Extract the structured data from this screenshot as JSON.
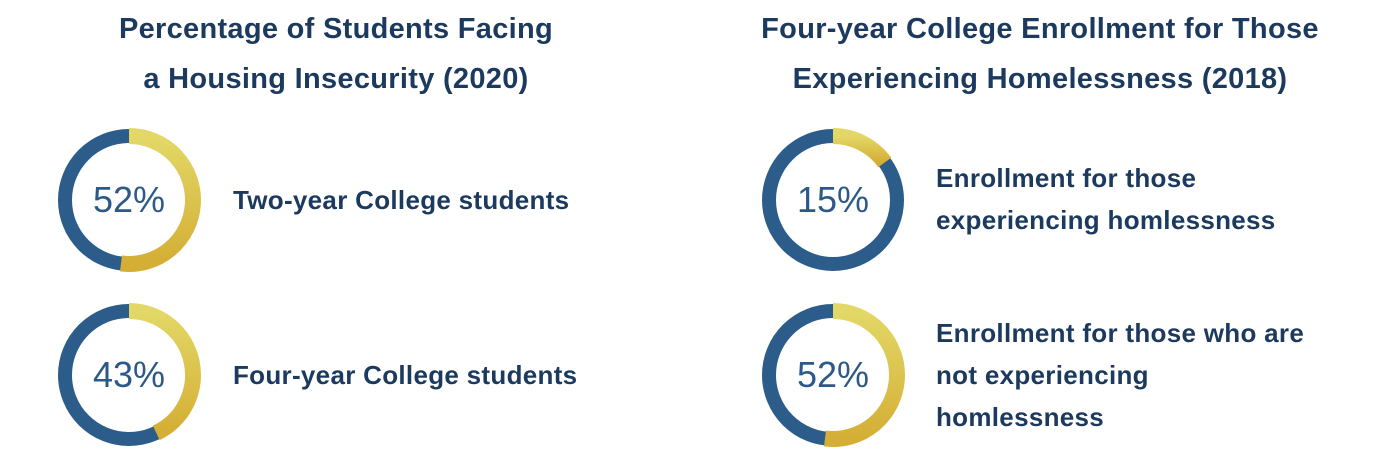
{
  "colors": {
    "track": "#2c5c8a",
    "accent_start": "#e3d867",
    "accent_end": "#d4ae35",
    "text": "#1c3a5e"
  },
  "chart_data": [
    {
      "type": "donut",
      "title": [
        "Percentage of Students Facing",
        "a Housing Insecurity (2020)"
      ],
      "items": [
        {
          "value": 52,
          "value_label": "52%",
          "label": [
            "Two-year College students"
          ]
        },
        {
          "value": 43,
          "value_label": "43%",
          "label": [
            "Four-year College students"
          ]
        }
      ]
    },
    {
      "type": "donut",
      "title": [
        "Four-year College Enrollment for Those",
        "Experiencing Homelessness (2018)"
      ],
      "items": [
        {
          "value": 15,
          "value_label": "15%",
          "label": [
            "Enrollment for those",
            "experiencing homlessness"
          ]
        },
        {
          "value": 52,
          "value_label": "52%",
          "label": [
            "Enrollment for those who are",
            "not experiencing",
            "homlessness"
          ]
        }
      ]
    }
  ]
}
